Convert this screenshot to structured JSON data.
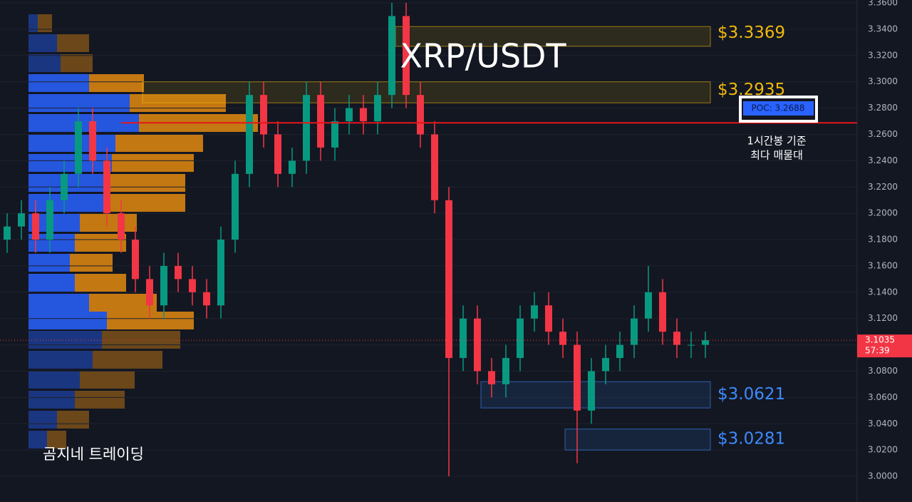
{
  "chart_data": {
    "type": "candlestick",
    "title": "XRP/USDT",
    "watermark": "곰지네 트레이딩",
    "ylim": [
      2.9805,
      3.3622
    ],
    "yticks": [
      {
        "value": 3.0,
        "label": "3.0000"
      },
      {
        "value": 3.02,
        "label": "3.0200"
      },
      {
        "value": 3.04,
        "label": "3.0400"
      },
      {
        "value": 3.06,
        "label": "3.0600"
      },
      {
        "value": 3.08,
        "label": "3.0800"
      },
      {
        "value": 3.1,
        "label": "3.1000"
      },
      {
        "value": 3.12,
        "label": "3.1200"
      },
      {
        "value": 3.14,
        "label": "3.1400"
      },
      {
        "value": 3.16,
        "label": "3.1600"
      },
      {
        "value": 3.18,
        "label": "3.1800"
      },
      {
        "value": 3.2,
        "label": "3.2000"
      },
      {
        "value": 3.22,
        "label": "3.2200"
      },
      {
        "value": 3.24,
        "label": "3.2400"
      },
      {
        "value": 3.26,
        "label": "3.2600"
      },
      {
        "value": 3.28,
        "label": "3.2800"
      },
      {
        "value": 3.3,
        "label": "3.3000"
      },
      {
        "value": 3.32,
        "label": "3.3200"
      },
      {
        "value": 3.34,
        "label": "3.3400"
      },
      {
        "value": 3.36,
        "label": "3.3600"
      }
    ],
    "grid": true,
    "up_color": "#089981",
    "down_color": "#f23645",
    "open": [
      3.18,
      3.19,
      3.2,
      3.18,
      3.21,
      3.23,
      3.27,
      3.24,
      3.2,
      3.18,
      3.15,
      3.13,
      3.16,
      3.15,
      3.14,
      3.13,
      3.18,
      3.23,
      3.29,
      3.26,
      3.23,
      3.24,
      3.29,
      3.25,
      3.27,
      3.28,
      3.27,
      3.29,
      3.35,
      3.29,
      3.26,
      3.21,
      3.09,
      3.12,
      3.08,
      3.07,
      3.09,
      3.12,
      3.13,
      3.11,
      3.1,
      3.05,
      3.08,
      3.09,
      3.1,
      3.12,
      3.14,
      3.11,
      3.1,
      3.1
    ],
    "high": [
      3.2,
      3.21,
      3.21,
      3.22,
      3.24,
      3.28,
      3.28,
      3.25,
      3.21,
      3.19,
      3.16,
      3.17,
      3.17,
      3.16,
      3.15,
      3.19,
      3.24,
      3.3,
      3.3,
      3.27,
      3.25,
      3.3,
      3.3,
      3.28,
      3.29,
      3.29,
      3.3,
      3.36,
      3.36,
      3.3,
      3.27,
      3.22,
      3.13,
      3.13,
      3.09,
      3.1,
      3.13,
      3.14,
      3.14,
      3.12,
      3.11,
      3.09,
      3.1,
      3.11,
      3.13,
      3.16,
      3.15,
      3.12,
      3.11,
      3.11
    ],
    "low": [
      3.17,
      3.18,
      3.17,
      3.17,
      3.2,
      3.22,
      3.23,
      3.19,
      3.17,
      3.14,
      3.12,
      3.12,
      3.14,
      3.13,
      3.12,
      3.12,
      3.17,
      3.22,
      3.25,
      3.22,
      3.22,
      3.23,
      3.24,
      3.24,
      3.26,
      3.26,
      3.26,
      3.28,
      3.28,
      3.25,
      3.2,
      3.0,
      3.08,
      3.07,
      3.06,
      3.06,
      3.08,
      3.11,
      3.1,
      3.09,
      3.01,
      3.04,
      3.07,
      3.08,
      3.09,
      3.11,
      3.1,
      3.09,
      3.09,
      3.09
    ],
    "close": [
      3.19,
      3.2,
      3.18,
      3.21,
      3.23,
      3.27,
      3.24,
      3.2,
      3.18,
      3.15,
      3.13,
      3.16,
      3.15,
      3.14,
      3.13,
      3.18,
      3.23,
      3.29,
      3.26,
      3.23,
      3.24,
      3.29,
      3.25,
      3.27,
      3.28,
      3.27,
      3.29,
      3.35,
      3.29,
      3.26,
      3.21,
      3.09,
      3.12,
      3.08,
      3.07,
      3.09,
      3.12,
      3.13,
      3.11,
      3.1,
      3.05,
      3.08,
      3.09,
      3.1,
      3.12,
      3.14,
      3.11,
      3.1,
      3.1,
      3.1035
    ],
    "levels": [
      {
        "value": 3.3369,
        "label": "$3.3369",
        "color": "#f0b90b",
        "zone": [
          3.327,
          3.342
        ]
      },
      {
        "value": 3.2935,
        "label": "$3.2935",
        "color": "#f0b90b",
        "zone": [
          3.284,
          3.3
        ]
      },
      {
        "value": 3.0621,
        "label": "$3.0621",
        "color": "#3d8bfd",
        "zone": [
          3.052,
          3.072
        ]
      },
      {
        "value": 3.0281,
        "label": "$3.0281",
        "color": "#3d8bfd",
        "zone": [
          3.02,
          3.036
        ]
      }
    ],
    "poc": {
      "value": 3.2688,
      "label": "POC: 3.2688",
      "note": [
        "1시간봉 기준",
        "최다 매물대"
      ]
    },
    "last_price": {
      "value": 3.1035,
      "label": "3.1035",
      "countdown": "57:39"
    }
  }
}
